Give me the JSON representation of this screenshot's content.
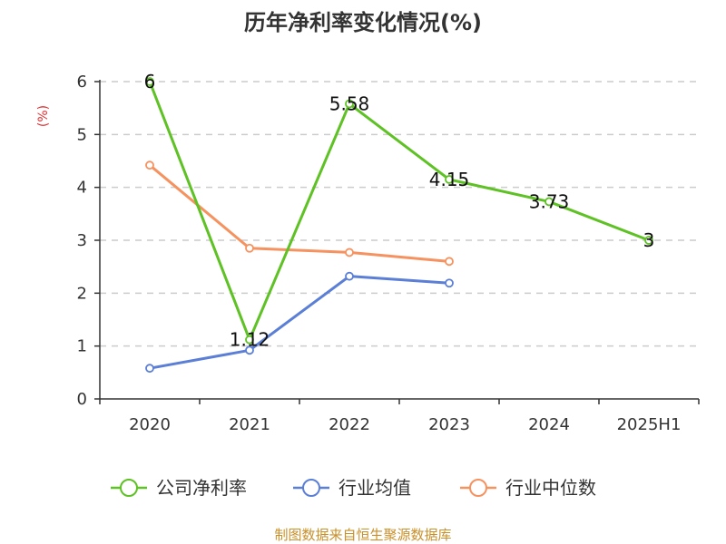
{
  "chart_data": {
    "type": "line",
    "title": "历年净利率变化情况(%)",
    "ylabel": "(%)",
    "categories": [
      "2020",
      "2021",
      "2022",
      "2023",
      "2024",
      "2025H1"
    ],
    "ylim": [
      0,
      6
    ],
    "yticks": [
      "0",
      "1",
      "2",
      "3",
      "4",
      "5",
      "6"
    ],
    "grid": true,
    "legend_position": "bottom",
    "series": [
      {
        "name": "公司净利率",
        "color": "#5ec124",
        "values": [
          6,
          1.12,
          5.58,
          4.15,
          3.73,
          3
        ],
        "labels": [
          "6",
          "1.12",
          "5.58",
          "4.15",
          "3.73",
          "3"
        ]
      },
      {
        "name": "行业均值",
        "color": "#5b7fd6",
        "values": [
          0.58,
          0.92,
          2.32,
          2.19,
          null,
          null
        ]
      },
      {
        "name": "行业中位数",
        "color": "#f5925f",
        "values": [
          4.42,
          2.85,
          2.77,
          2.6,
          null,
          null
        ]
      }
    ]
  },
  "source": "制图数据来自恒生聚源数据库"
}
